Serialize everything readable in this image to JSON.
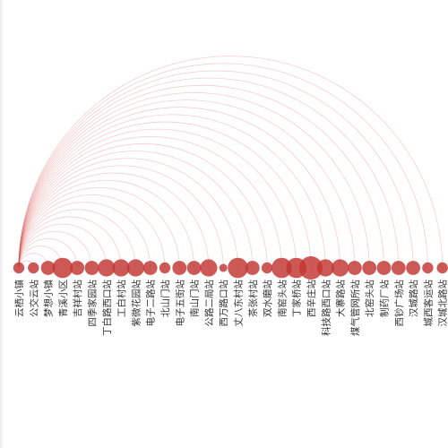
{
  "diagram": {
    "type": "arc-diagram",
    "source": "云栖小镇",
    "colors": {
      "node": "#c23531",
      "link": "#d9534f",
      "label": "#333333"
    },
    "nodes": [
      {
        "name": "云栖小镇",
        "weight": 1
      },
      {
        "name": "公交云站",
        "weight": 1
      },
      {
        "name": "梦想小镇",
        "weight": 2
      },
      {
        "name": "青溪小区",
        "weight": 4
      },
      {
        "name": "吉祥村站",
        "weight": 2
      },
      {
        "name": "四季家园站",
        "weight": 2
      },
      {
        "name": "丁白路西口站",
        "weight": 3
      },
      {
        "name": "工白村站",
        "weight": 3
      },
      {
        "name": "紫微花园站",
        "weight": 3
      },
      {
        "name": "电子二路站",
        "weight": 2
      },
      {
        "name": "北山门站",
        "weight": 1
      },
      {
        "name": "电子五街站",
        "weight": 2
      },
      {
        "name": "南山门站",
        "weight": 2
      },
      {
        "name": "公路二局站",
        "weight": 3
      },
      {
        "name": "西万路口站",
        "weight": 0
      },
      {
        "name": "丈八东村站",
        "weight": 4
      },
      {
        "name": "茶张村站",
        "weight": 2
      },
      {
        "name": "双水磨站",
        "weight": 1
      },
      {
        "name": "南窑头站",
        "weight": 4
      },
      {
        "name": "丁家桥站",
        "weight": 4
      },
      {
        "name": "西辛庄站",
        "weight": 5
      },
      {
        "name": "科技路西口站",
        "weight": 3
      },
      {
        "name": "大寨路站",
        "weight": 3
      },
      {
        "name": "煤气管网所站",
        "weight": 2
      },
      {
        "name": "北窑头站",
        "weight": 2
      },
      {
        "name": "制药厂站",
        "weight": 2
      },
      {
        "name": "西钞广场站",
        "weight": 2
      },
      {
        "name": "汉城路站",
        "weight": 2
      },
      {
        "name": "城西客运站",
        "weight": 1
      },
      {
        "name": "汉城北路站",
        "weight": 1
      }
    ]
  }
}
